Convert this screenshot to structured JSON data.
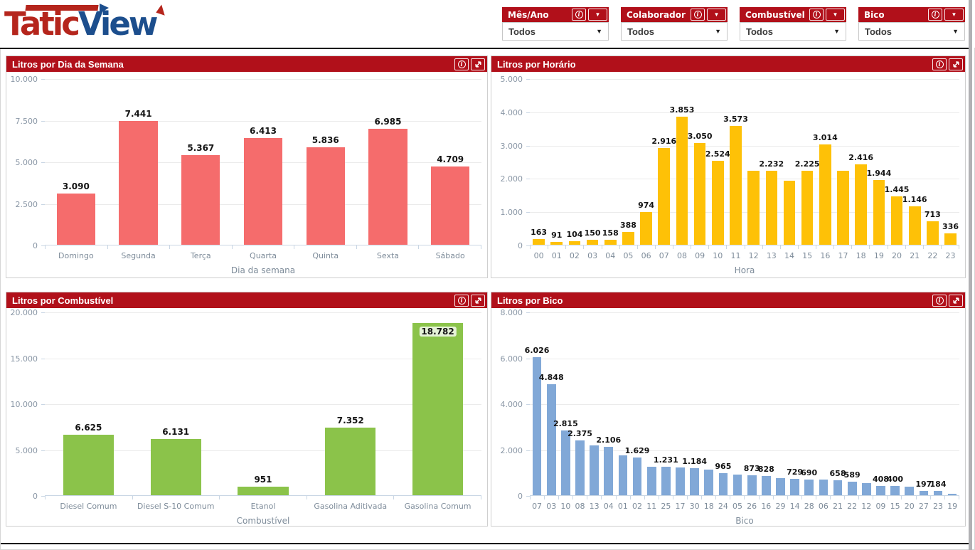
{
  "logo": {
    "part1": "Tatic",
    "part2": "View"
  },
  "colors": {
    "header_red": "#b1101a",
    "bar_red": "#f56c6c",
    "bar_yellow": "#fec107",
    "bar_green": "#8bc34a",
    "bar_blue": "#81a8d7",
    "logo_red": "#b5251c",
    "logo_blue": "#1c4e8d"
  },
  "filters": [
    {
      "title": "Mês/Ano",
      "value": "Todos"
    },
    {
      "title": "Colaborador",
      "value": "Todos"
    },
    {
      "title": "Combustível",
      "value": "Todos"
    },
    {
      "title": "Bico",
      "value": "Todos"
    }
  ],
  "chart_data": [
    {
      "type": "bar",
      "title": "Litros por Dia da Semana",
      "xlabel": "Dia da semana",
      "ylim": [
        0,
        10000
      ],
      "grid": true,
      "ticks": [
        {
          "v": 0,
          "label": "0"
        },
        {
          "v": 2500,
          "label": "2.500"
        },
        {
          "v": 5000,
          "label": "5.000"
        },
        {
          "v": 7500,
          "label": "7.500"
        },
        {
          "v": 10000,
          "label": "10.000"
        }
      ],
      "categories": [
        "Domingo",
        "Segunda",
        "Terça",
        "Quarta",
        "Quinta",
        "Sexta",
        "Sábado"
      ],
      "values": [
        3090,
        7441,
        5367,
        6413,
        5836,
        6985,
        4709
      ],
      "labels": [
        "3.090",
        "7.441",
        "5.367",
        "6.413",
        "5.836",
        "6.985",
        "4.709"
      ],
      "color": "#f56c6c"
    },
    {
      "type": "bar",
      "title": "Litros por Horário",
      "xlabel": "Hora",
      "ylim": [
        0,
        5000
      ],
      "grid": true,
      "ticks": [
        {
          "v": 0,
          "label": "0"
        },
        {
          "v": 1000,
          "label": "1.000"
        },
        {
          "v": 2000,
          "label": "2.000"
        },
        {
          "v": 3000,
          "label": "3.000"
        },
        {
          "v": 4000,
          "label": "4.000"
        },
        {
          "v": 5000,
          "label": "5.000"
        }
      ],
      "categories": [
        "00",
        "01",
        "02",
        "03",
        "04",
        "05",
        "06",
        "07",
        "08",
        "09",
        "10",
        "11",
        "12",
        "13",
        "14",
        "15",
        "16",
        "17",
        "18",
        "19",
        "20",
        "21",
        "22",
        "23"
      ],
      "values": [
        163,
        91,
        104,
        150,
        158,
        388,
        974,
        2916,
        3853,
        3050,
        2524,
        3573,
        2232,
        2232,
        1930,
        2225,
        3014,
        2225,
        2416,
        1944,
        1445,
        1146,
        713,
        336
      ],
      "labels": [
        "163",
        "91",
        "104",
        "150",
        "158",
        "388",
        "974",
        "2.916",
        "3.853",
        "3.050",
        "2.524",
        "3.573",
        "",
        "2.232",
        "",
        "2.225",
        "3.014",
        "",
        "2.416",
        "1.944",
        "1.445",
        "1.146",
        "713",
        "336"
      ],
      "color": "#fec107"
    },
    {
      "type": "bar",
      "title": "Litros por Combustível",
      "xlabel": "Combustível",
      "ylim": [
        0,
        20000
      ],
      "grid": true,
      "ticks": [
        {
          "v": 0,
          "label": "0"
        },
        {
          "v": 5000,
          "label": "5.000"
        },
        {
          "v": 10000,
          "label": "10.000"
        },
        {
          "v": 15000,
          "label": "15.000"
        },
        {
          "v": 20000,
          "label": "20.000"
        }
      ],
      "categories": [
        "Diesel Comum",
        "Diesel S-10 Comum",
        "Etanol",
        "Gasolina Aditivada",
        "Gasolina Comum"
      ],
      "values": [
        6625,
        6131,
        951,
        7352,
        18782
      ],
      "labels": [
        "6.625",
        "6.131",
        "951",
        "7.352",
        "18.782"
      ],
      "color": "#8bc34a"
    },
    {
      "type": "bar",
      "title": "Litros por Bico",
      "xlabel": "Bico",
      "ylim": [
        0,
        8000
      ],
      "grid": true,
      "ticks": [
        {
          "v": 0,
          "label": "0"
        },
        {
          "v": 2000,
          "label": "2.000"
        },
        {
          "v": 4000,
          "label": "4.000"
        },
        {
          "v": 6000,
          "label": "6.000"
        },
        {
          "v": 8000,
          "label": "8.000"
        }
      ],
      "categories": [
        "07",
        "03",
        "10",
        "08",
        "13",
        "04",
        "01",
        "02",
        "11",
        "25",
        "17",
        "30",
        "18",
        "24",
        "05",
        "26",
        "16",
        "29",
        "14",
        "28",
        "06",
        "21",
        "22",
        "12",
        "09",
        "15",
        "20",
        "27",
        "23",
        "19"
      ],
      "values": [
        6026,
        4848,
        2815,
        2375,
        2180,
        2106,
        1730,
        1629,
        1250,
        1231,
        1210,
        1184,
        1130,
        965,
        910,
        873,
        828,
        760,
        729,
        690,
        675,
        658,
        589,
        520,
        408,
        400,
        370,
        197,
        184,
        75
      ],
      "labels": [
        "6.026",
        "4.848",
        "2.815",
        "2.375",
        "",
        "2.106",
        "",
        "1.629",
        "",
        "1.231",
        "",
        "1.184",
        "",
        "965",
        "",
        "873",
        "828",
        "",
        "729",
        "690",
        "",
        "658",
        "589",
        "",
        "408",
        "400",
        "",
        "197",
        "184",
        ""
      ],
      "color": "#81a8d7"
    }
  ]
}
